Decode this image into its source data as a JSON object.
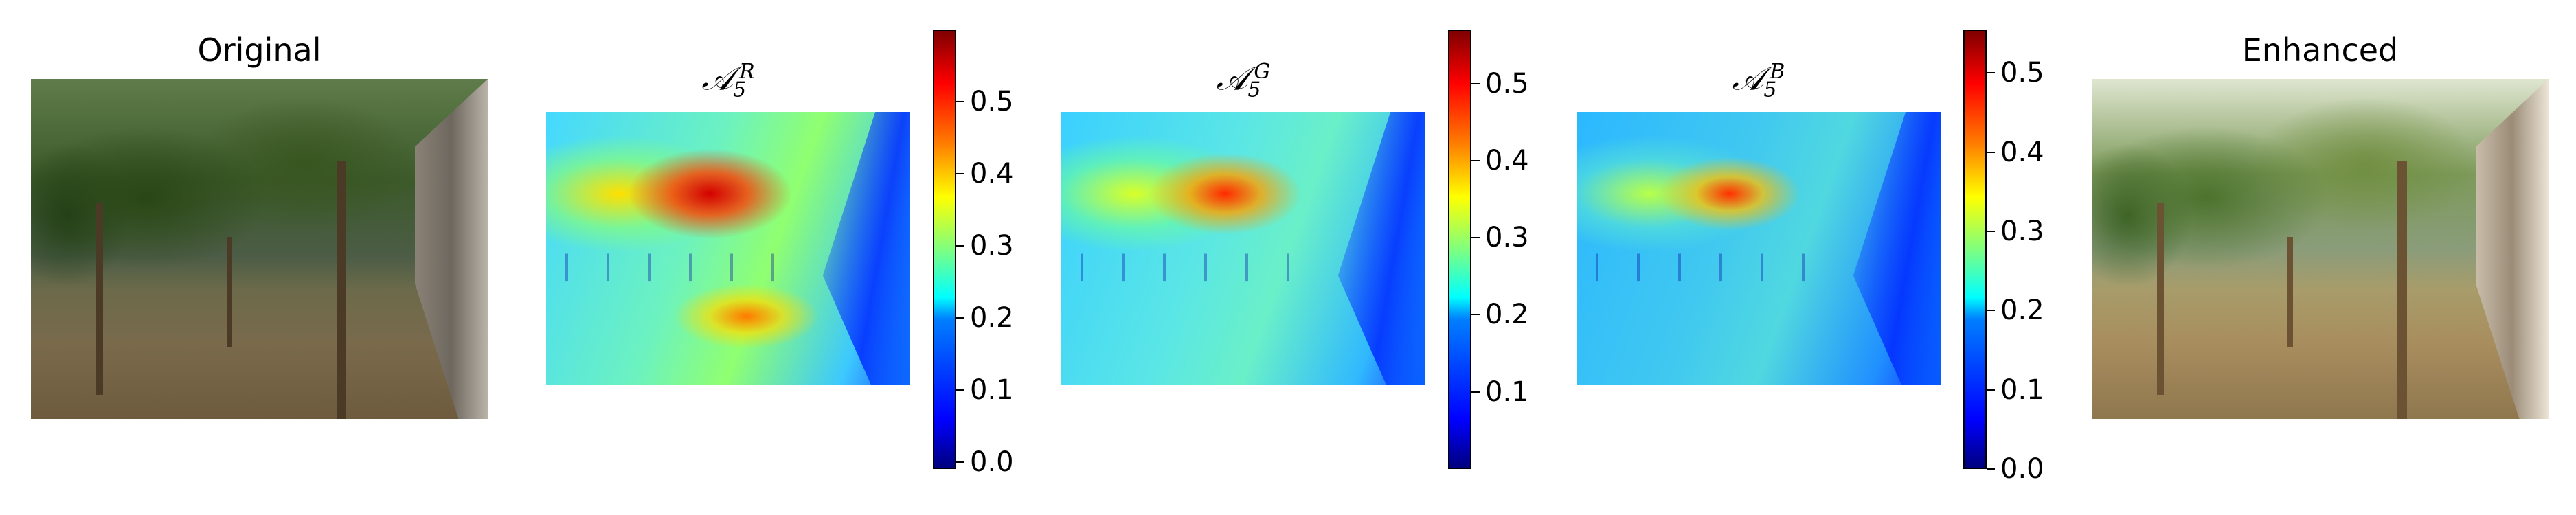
{
  "panels": [
    {
      "id": "original",
      "title": "Original"
    },
    {
      "id": "a5r",
      "title_lead": "𝒜",
      "title_sub": "5",
      "title_sup": "R",
      "colorbar": {
        "min": -0.01,
        "max": 0.6,
        "ticks": [
          "0.0",
          "0.1",
          "0.2",
          "0.3",
          "0.4",
          "0.5"
        ],
        "tick_values": [
          0.0,
          0.1,
          0.2,
          0.3,
          0.4,
          0.5
        ]
      }
    },
    {
      "id": "a5g",
      "title_lead": "𝒜",
      "title_sub": "5",
      "title_sup": "G",
      "colorbar": {
        "min": 0.0,
        "max": 0.57,
        "ticks": [
          "0.1",
          "0.2",
          "0.3",
          "0.4",
          "0.5"
        ],
        "tick_values": [
          0.1,
          0.2,
          0.3,
          0.4,
          0.5
        ]
      }
    },
    {
      "id": "a5b",
      "title_lead": "𝒜",
      "title_sub": "5",
      "title_sup": "B",
      "colorbar": {
        "min": 0.0,
        "max": 0.555,
        "ticks": [
          "0.0",
          "0.1",
          "0.2",
          "0.3",
          "0.4",
          "0.5"
        ],
        "tick_values": [
          0.0,
          0.1,
          0.2,
          0.3,
          0.4,
          0.5
        ]
      }
    },
    {
      "id": "enhanced",
      "title": "Enhanced"
    }
  ],
  "colors": {
    "colormap": "jet"
  }
}
